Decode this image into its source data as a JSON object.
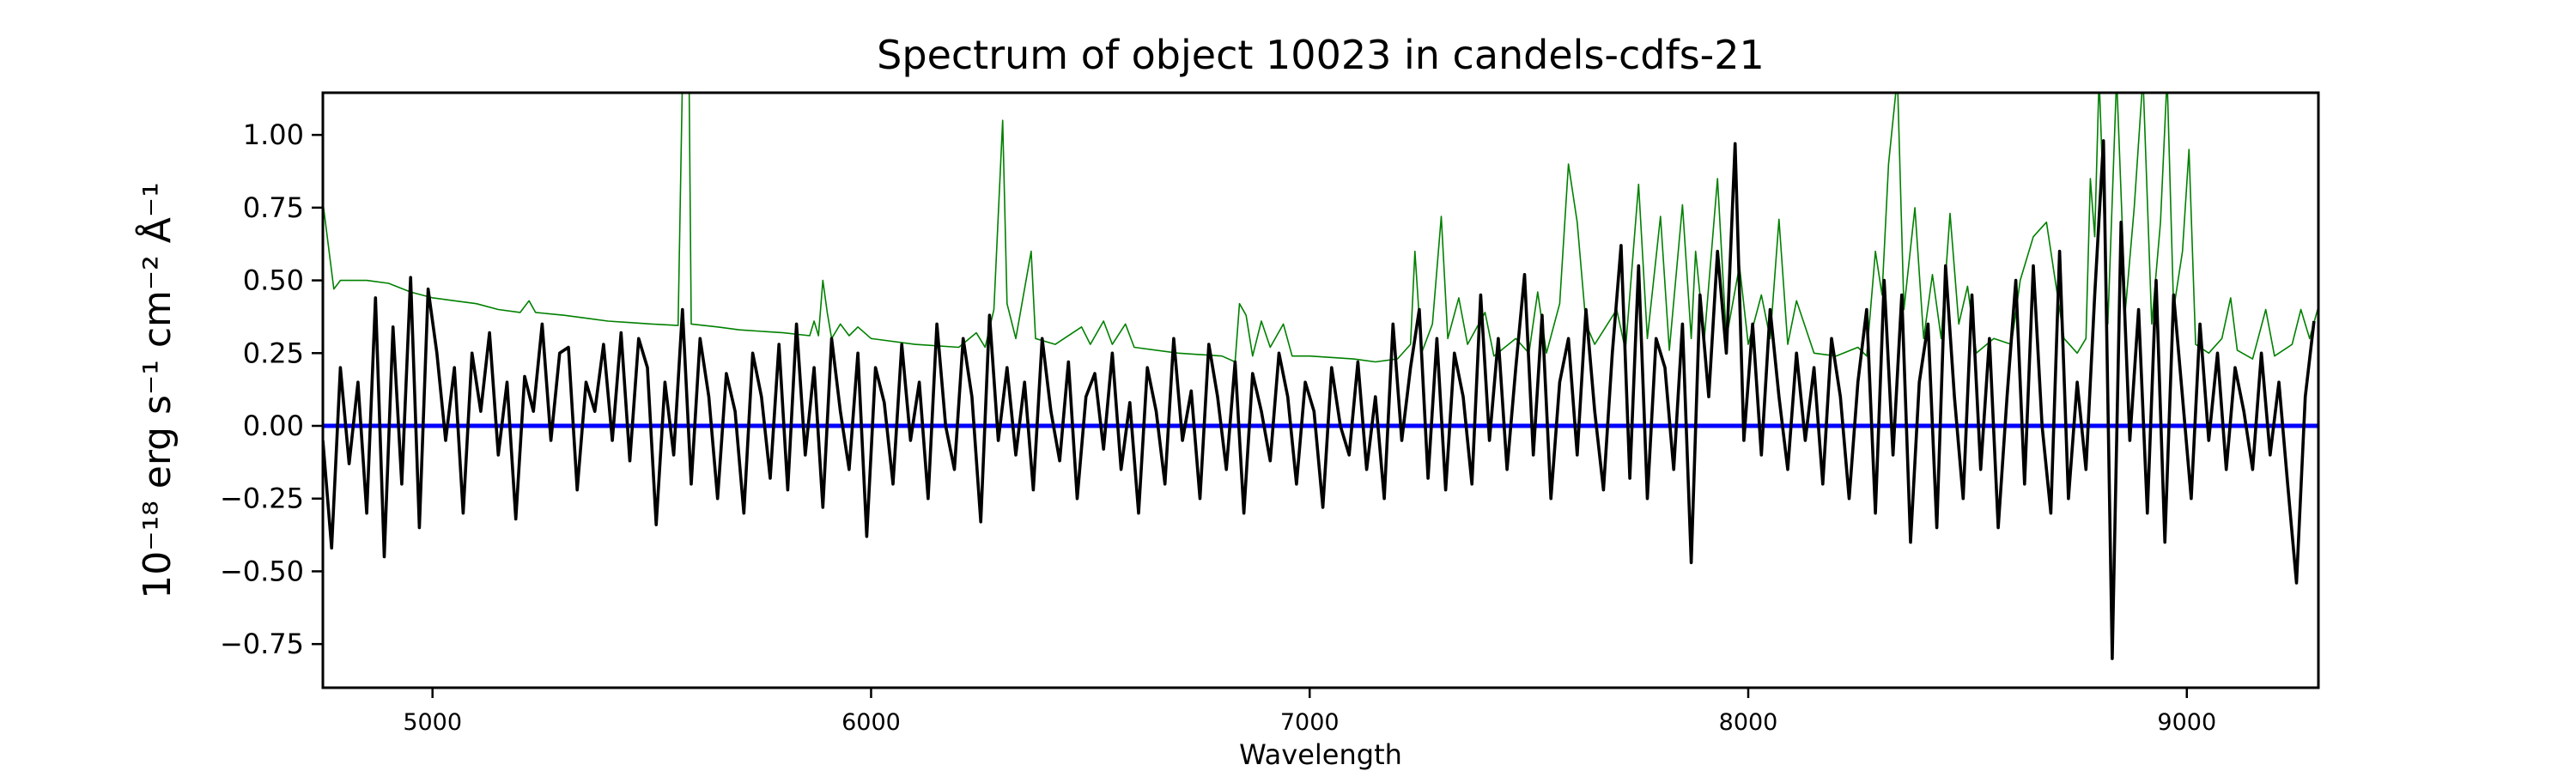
{
  "chart_data": {
    "type": "line",
    "title": "Spectrum of object 10023 in candels-cdfs-21",
    "xlabel": "Wavelength",
    "ylabel": "10⁻¹⁸ erg s⁻¹ cm⁻² Å⁻¹",
    "xlim": [
      4750,
      9300
    ],
    "ylim": [
      -0.9,
      1.145
    ],
    "xticks": [
      5000,
      6000,
      7000,
      8000,
      9000
    ],
    "xtick_labels": [
      "5000",
      "6000",
      "7000",
      "8000",
      "9000"
    ],
    "yticks": [
      1.0,
      0.75,
      0.5,
      0.25,
      0.0,
      -0.25,
      -0.5,
      -0.75
    ],
    "ytick_labels": [
      "1.00",
      "0.75",
      "0.50",
      "0.25",
      "0.00",
      "−0.25",
      "−0.50",
      "−0.75"
    ],
    "grid": false,
    "legend": "none",
    "series": [
      {
        "color": "#008000",
        "x": [
          4750,
          4760,
          4775,
          4790,
          4850,
          4900,
          4950,
          5000,
          5050,
          5100,
          5150,
          5200,
          5220,
          5235,
          5300,
          5350,
          5400,
          5450,
          5500,
          5560,
          5570,
          5585,
          5590,
          5650,
          5700,
          5800,
          5860,
          5870,
          5880,
          5890,
          5900,
          5910,
          5930,
          5950,
          5970,
          6000,
          6100,
          6200,
          6240,
          6260,
          6280,
          6300,
          6310,
          6330,
          6365,
          6375,
          6420,
          6480,
          6500,
          6530,
          6550,
          6580,
          6600,
          6700,
          6800,
          6830,
          6840,
          6855,
          6870,
          6890,
          6910,
          6940,
          6960,
          7000,
          7100,
          7150,
          7200,
          7230,
          7240,
          7255,
          7280,
          7300,
          7315,
          7340,
          7360,
          7400,
          7420,
          7470,
          7500,
          7520,
          7540,
          7570,
          7590,
          7610,
          7630,
          7650,
          7700,
          7720,
          7750,
          7770,
          7800,
          7820,
          7850,
          7870,
          7880,
          7900,
          7930,
          7950,
          7980,
          8000,
          8030,
          8050,
          8070,
          8090,
          8110,
          8150,
          8200,
          8250,
          8270,
          8290,
          8305,
          8320,
          8340,
          8355,
          8380,
          8400,
          8420,
          8440,
          8460,
          8480,
          8500,
          8520,
          8560,
          8600,
          8620,
          8650,
          8680,
          8700,
          8720,
          8750,
          8770,
          8780,
          8790,
          8800,
          8820,
          8840,
          8860,
          8880,
          8900,
          8920,
          8940,
          8955,
          8970,
          8990,
          9005,
          9020,
          9050,
          9080,
          9100,
          9115,
          9150,
          9180,
          9200,
          9240,
          9260,
          9280,
          9300
        ],
        "y": [
          0.77,
          0.65,
          0.47,
          0.5,
          0.5,
          0.49,
          0.46,
          0.44,
          0.43,
          0.42,
          0.4,
          0.39,
          0.43,
          0.39,
          0.38,
          0.37,
          0.36,
          0.355,
          0.35,
          0.345,
          1.2,
          1.2,
          0.35,
          0.34,
          0.33,
          0.32,
          0.31,
          0.36,
          0.31,
          0.5,
          0.39,
          0.3,
          0.35,
          0.31,
          0.34,
          0.3,
          0.28,
          0.27,
          0.32,
          0.27,
          0.4,
          1.05,
          0.42,
          0.3,
          0.6,
          0.3,
          0.28,
          0.34,
          0.28,
          0.36,
          0.28,
          0.35,
          0.27,
          0.25,
          0.24,
          0.22,
          0.42,
          0.38,
          0.24,
          0.36,
          0.27,
          0.35,
          0.24,
          0.24,
          0.23,
          0.22,
          0.23,
          0.28,
          0.6,
          0.25,
          0.35,
          0.72,
          0.3,
          0.44,
          0.28,
          0.39,
          0.24,
          0.3,
          0.25,
          0.46,
          0.25,
          0.42,
          0.9,
          0.7,
          0.35,
          0.28,
          0.4,
          0.26,
          0.83,
          0.3,
          0.72,
          0.26,
          0.76,
          0.3,
          0.6,
          0.3,
          0.85,
          0.3,
          0.55,
          0.28,
          0.45,
          0.3,
          0.71,
          0.28,
          0.43,
          0.25,
          0.24,
          0.27,
          0.24,
          0.6,
          0.45,
          0.9,
          1.2,
          0.4,
          0.75,
          0.3,
          0.52,
          0.3,
          0.73,
          0.35,
          0.48,
          0.25,
          0.3,
          0.28,
          0.5,
          0.65,
          0.7,
          0.5,
          0.3,
          0.25,
          0.3,
          0.85,
          0.65,
          1.2,
          0.35,
          1.2,
          0.4,
          0.75,
          1.2,
          0.35,
          0.7,
          1.2,
          0.4,
          0.6,
          0.95,
          0.28,
          0.25,
          0.3,
          0.44,
          0.26,
          0.23,
          0.4,
          0.24,
          0.28,
          0.4,
          0.3,
          0.41
        ]
      },
      {
        "color": "#0000ff",
        "x": [
          4750,
          9300
        ],
        "y": [
          0,
          0
        ]
      },
      {
        "color": "#000000",
        "x_start": 4750,
        "x_step": 20,
        "y": [
          -0.05,
          -0.42,
          0.2,
          -0.13,
          0.15,
          -0.3,
          0.44,
          -0.45,
          0.34,
          -0.2,
          0.51,
          -0.35,
          0.47,
          0.25,
          -0.05,
          0.2,
          -0.3,
          0.25,
          0.05,
          0.32,
          -0.1,
          0.15,
          -0.32,
          0.17,
          0.05,
          0.35,
          -0.05,
          0.25,
          0.27,
          -0.22,
          0.15,
          0.05,
          0.28,
          -0.05,
          0.32,
          -0.12,
          0.3,
          0.2,
          -0.34,
          0.15,
          -0.1,
          0.4,
          -0.2,
          0.3,
          0.1,
          -0.25,
          0.18,
          0.05,
          -0.3,
          0.25,
          0.1,
          -0.18,
          0.28,
          -0.22,
          0.35,
          -0.1,
          0.2,
          -0.28,
          0.3,
          0.05,
          -0.15,
          0.25,
          -0.38,
          0.2,
          0.08,
          -0.2,
          0.28,
          -0.05,
          0.15,
          -0.25,
          0.35,
          0.0,
          -0.15,
          0.3,
          0.1,
          -0.33,
          0.38,
          -0.05,
          0.2,
          -0.1,
          0.15,
          -0.22,
          0.3,
          0.05,
          -0.12,
          0.22,
          -0.25,
          0.1,
          0.18,
          -0.08,
          0.25,
          -0.15,
          0.08,
          -0.3,
          0.2,
          0.05,
          -0.2,
          0.3,
          -0.05,
          0.12,
          -0.25,
          0.28,
          0.1,
          -0.15,
          0.22,
          -0.3,
          0.18,
          0.05,
          -0.12,
          0.25,
          0.1,
          -0.2,
          0.15,
          0.05,
          -0.28,
          0.2,
          0.0,
          -0.1,
          0.22,
          -0.15,
          0.1,
          -0.25,
          0.35,
          -0.05,
          0.2,
          0.4,
          -0.18,
          0.3,
          -0.22,
          0.25,
          0.1,
          -0.2,
          0.45,
          -0.05,
          0.3,
          -0.15,
          0.2,
          0.52,
          -0.1,
          0.38,
          -0.25,
          0.15,
          0.3,
          -0.1,
          0.4,
          0.05,
          -0.22,
          0.25,
          0.62,
          -0.18,
          0.55,
          -0.25,
          0.3,
          0.2,
          -0.15,
          0.35,
          -0.47,
          0.45,
          0.1,
          0.6,
          0.25,
          0.97,
          -0.05,
          0.35,
          -0.1,
          0.4,
          0.1,
          -0.15,
          0.25,
          -0.05,
          0.2,
          -0.2,
          0.3,
          0.1,
          -0.25,
          0.15,
          0.4,
          -0.3,
          0.5,
          -0.1,
          0.45,
          -0.4,
          0.15,
          0.35,
          -0.35,
          0.55,
          0.1,
          -0.25,
          0.45,
          -0.15,
          0.3,
          -0.35,
          0.1,
          0.5,
          -0.2,
          0.55,
          0.0,
          -0.3,
          0.6,
          -0.25,
          0.15,
          -0.15,
          0.45,
          0.98,
          -0.8,
          0.7,
          -0.05,
          0.4,
          -0.3,
          0.5,
          -0.4,
          0.45,
          0.1,
          -0.25,
          0.35,
          -0.05,
          0.25,
          -0.15,
          0.2,
          0.05,
          -0.15,
          0.25,
          -0.1,
          0.15,
          -0.2,
          -0.54,
          0.1,
          0.36
        ]
      }
    ]
  }
}
